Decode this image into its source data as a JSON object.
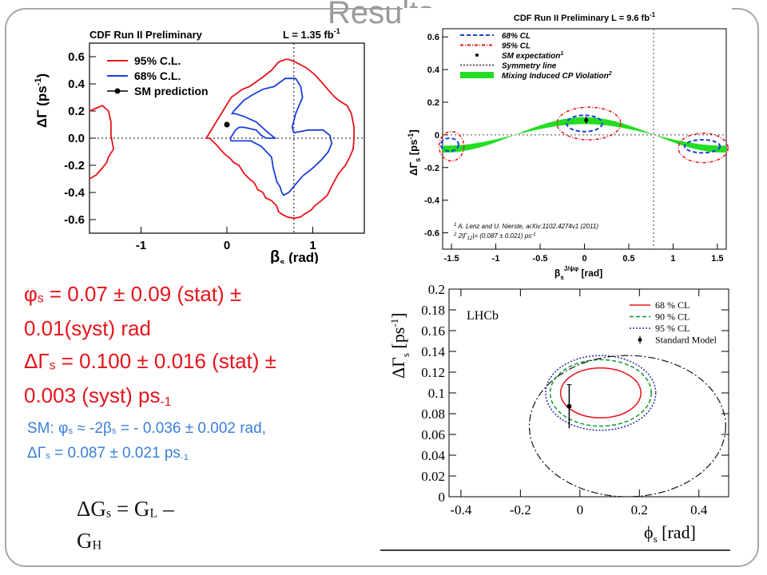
{
  "slide": {
    "title": "Results",
    "results": {
      "phi_s": {
        "sym": "φ",
        "sub": "s",
        "text": " = 0.07 ± 0.09 (stat) ±",
        "text2": "0.01(syst) rad"
      },
      "dgamma": {
        "sym": "ΔΓ",
        "sub": "s",
        "text": " = 0.100 ± 0.016 (stat) ±",
        "text2": "0.003 (syst) ps",
        "sup": "-1"
      },
      "sm": {
        "l1_a": "SM: φ",
        "l1_sub1": "s",
        "l1_b": " ≈ -2β",
        "l1_sub2": "s",
        "l1_c": " = - 0.036 ± 0.002 rad,",
        "l2_a": "ΔΓ",
        "l2_sub": "s",
        "l2_b": " = 0.087 ± 0.021 ps",
        "l2_sup": "-1"
      },
      "def": {
        "a": "ΔG",
        "s": "s",
        "b": " = G",
        "L": "L",
        "c": " –",
        "d": "G",
        "H": "H"
      }
    }
  },
  "chart_data": [
    {
      "type": "line",
      "title": "CDF Run II Preliminary",
      "lumi": "L = 1.35 fb",
      "lumi_sup": "-1",
      "xlabel": "β",
      "xlabel_sub": "s",
      "xlabel_unit": "(rad)",
      "ylabel": "ΔΓ (ps",
      "ylabel_sup": "-1",
      "ylabel_end": ")",
      "xlim": [
        -1.6,
        1.6
      ],
      "ylim": [
        -0.7,
        0.7
      ],
      "xticks": [
        -1,
        0,
        1
      ],
      "yticks": [
        -0.6,
        -0.4,
        -0.2,
        0.0,
        0.2,
        0.4,
        0.6
      ],
      "ytick_labels": [
        "-0.6",
        "-0.4",
        "-0.2",
        "0.0",
        "0.2",
        "0.4",
        "0.6"
      ],
      "legend": [
        {
          "name": "95% C.L.",
          "color": "#e8131a",
          "style": "line"
        },
        {
          "name": "68% C.L.",
          "color": "#1a3fd9",
          "style": "line"
        },
        {
          "name": "SM prediction",
          "color": "#000000",
          "style": "point"
        }
      ],
      "contours": [
        {
          "name": "95% C.L.",
          "color": "#e8131a",
          "x": [
            -0.24,
            0.05,
            0.18,
            0.26,
            0.33,
            0.42,
            0.52,
            0.6,
            0.68,
            0.72,
            0.8,
            0.92,
            1.02,
            1.12,
            1.2,
            1.26,
            1.32,
            1.4,
            1.45,
            1.48,
            1.48,
            1.47,
            1.43,
            1.38,
            1.3,
            1.24,
            1.2,
            1.17,
            1.1,
            1.02,
            0.98,
            0.9,
            0.86,
            0.78,
            0.7,
            0.64,
            0.6,
            0.58,
            0.52,
            0.45,
            0.42,
            0.36,
            0.32,
            0.26,
            0.2,
            0.14,
            0.08,
            0.04,
            -0.02,
            -0.08,
            -0.12,
            -0.17,
            -0.2,
            -0.24,
            -0.24
          ],
          "y": [
            0.0,
            0.3,
            0.36,
            0.38,
            0.41,
            0.45,
            0.5,
            0.56,
            0.58,
            0.58,
            0.56,
            0.52,
            0.47,
            0.4,
            0.34,
            0.3,
            0.27,
            0.24,
            0.18,
            0.08,
            0.0,
            -0.08,
            -0.14,
            -0.2,
            -0.26,
            -0.33,
            -0.38,
            -0.42,
            -0.46,
            -0.5,
            -0.53,
            -0.56,
            -0.58,
            -0.59,
            -0.58,
            -0.56,
            -0.54,
            -0.5,
            -0.46,
            -0.44,
            -0.4,
            -0.38,
            -0.33,
            -0.3,
            -0.26,
            -0.2,
            -0.18,
            -0.15,
            -0.12,
            -0.08,
            -0.05,
            -0.02,
            0.0,
            0.0,
            0.0
          ]
        },
        {
          "name": "95% C.L. (left)",
          "color": "#e8131a",
          "x": [
            -1.6,
            -1.45,
            -1.38,
            -1.35,
            -1.35,
            -1.32,
            -1.38,
            -1.4,
            -1.45,
            -1.52,
            -1.6
          ],
          "y": [
            0.2,
            0.24,
            0.2,
            0.12,
            0.02,
            -0.08,
            -0.14,
            -0.18,
            -0.22,
            -0.27,
            -0.3
          ]
        },
        {
          "name": "68% C.L.",
          "color": "#1a3fd9",
          "x": [
            0.08,
            0.2,
            0.3,
            0.42,
            0.55,
            0.68,
            0.8,
            0.86,
            0.88,
            0.8,
            0.76,
            0.78,
            0.95,
            1.12,
            1.2,
            1.22,
            1.18,
            1.1,
            1.0,
            0.88,
            0.8,
            0.72,
            0.66,
            0.64,
            0.62,
            0.58,
            0.54,
            0.52,
            0.4,
            0.28,
            0.16,
            0.08,
            0.05,
            0.04,
            0.06,
            0.1,
            0.14,
            0.2,
            0.34,
            0.4,
            0.46,
            0.56,
            0.48,
            0.34,
            0.2,
            0.1,
            0.06,
            0.08
          ],
          "y": [
            0.2,
            0.28,
            0.32,
            0.36,
            0.38,
            0.44,
            0.44,
            0.38,
            0.3,
            0.18,
            0.08,
            0.04,
            0.06,
            0.06,
            0.02,
            -0.04,
            -0.1,
            -0.16,
            -0.22,
            -0.28,
            -0.34,
            -0.4,
            -0.42,
            -0.4,
            -0.36,
            -0.32,
            -0.22,
            -0.14,
            -0.06,
            -0.02,
            -0.02,
            -0.02,
            -0.02,
            0.0,
            0.02,
            0.06,
            0.08,
            0.08,
            0.06,
            0.02,
            0.0,
            0.0,
            0.04,
            0.12,
            0.16,
            0.18,
            0.18,
            0.2
          ]
        }
      ],
      "sm_point": {
        "x": 0.0,
        "y": 0.1,
        "err": 0.02
      },
      "reference_lines": {
        "x": 0.78,
        "y": 0.0
      }
    },
    {
      "type": "line",
      "title": "CDF Run II Preliminary",
      "lumi": "L = 9.6 fb",
      "lumi_sup": "-1",
      "xlabel": "β",
      "xlabel_sub": "s",
      "xlabel_sup": "J/ψφ",
      "xlabel_unit": "[rad]",
      "ylabel": "ΔΓ",
      "ylabel_sub": "s",
      "ylabel_unit": "[ps",
      "ylabel_sup": "-1",
      "ylabel_end": "]",
      "xlim": [
        -1.6,
        1.6
      ],
      "ylim": [
        -0.7,
        0.65
      ],
      "xticks": [
        -1.5,
        -1,
        -0.5,
        0,
        0.5,
        1,
        1.5
      ],
      "xtick_labels": [
        "-1.5",
        "-1",
        "-0.5",
        "0",
        "0.5",
        "1",
        "1.5"
      ],
      "yticks": [
        -0.6,
        -0.4,
        -0.2,
        0,
        0.2,
        0.4,
        0.6
      ],
      "ytick_labels": [
        "-0.6",
        "-0.4",
        "-0.2",
        "0",
        "0.2",
        "0.4",
        "0.6"
      ],
      "legend": [
        {
          "name": "68% CL",
          "color": "#1a3fd9",
          "style": "dash"
        },
        {
          "name": "95% CL",
          "color": "#e8131a",
          "style": "dashdot"
        },
        {
          "name": "SM expectation",
          "name_sup": "1",
          "color": "#000000",
          "style": "point"
        },
        {
          "name": "Symmetry line",
          "color": "#555555",
          "style": "dot"
        },
        {
          "name": "Mixing Induced CP Violation",
          "name_sup": "2",
          "color": "#22dd22",
          "style": "band"
        }
      ],
      "footnotes": [
        {
          "sup": "1",
          "text": "A. Lenz and U. Nierste, arXiv:1102.4274v1 (2011)"
        },
        {
          "sup": "2",
          "text": "2|Γ",
          "sub": "12",
          "text2": "|= (0.087 ± 0.021) ps",
          "text2_sup": "-1"
        }
      ],
      "band": {
        "color": "#22dd22",
        "center_amplitude": 0.087,
        "halfwidth": 0.021
      },
      "contours": [
        {
          "name": "68% CL",
          "color": "#1a3fd9",
          "cx": 0.0,
          "cy": 0.07,
          "rx": 0.2,
          "ry": 0.05
        },
        {
          "name": "68% CL",
          "color": "#1a3fd9",
          "cx": 1.33,
          "cy": -0.07,
          "rx": 0.2,
          "ry": 0.04
        },
        {
          "name": "68% CL",
          "color": "#1a3fd9",
          "cx": -1.52,
          "cy": -0.06,
          "rx": 0.1,
          "ry": 0.04
        },
        {
          "name": "95% CL",
          "color": "#e8131a",
          "cx": 0.05,
          "cy": 0.07,
          "rx": 0.36,
          "ry": 0.1
        },
        {
          "name": "95% CL",
          "color": "#e8131a",
          "cx": 1.34,
          "cy": -0.08,
          "rx": 0.28,
          "ry": 0.09
        },
        {
          "name": "95% CL",
          "color": "#e8131a",
          "cx": -1.5,
          "cy": -0.07,
          "rx": 0.14,
          "ry": 0.09
        }
      ],
      "sm_point": {
        "x": 0.02,
        "y": 0.09,
        "err": 0.02
      },
      "reference_lines": {
        "x": 0.78,
        "y": 0.0
      }
    },
    {
      "type": "line",
      "title": "LHCb",
      "xlabel": "ϕ",
      "xlabel_sub": "s",
      "xlabel_unit": "[rad]",
      "ylabel": "ΔΓ",
      "ylabel_sub": "s",
      "ylabel_unit": "[ps",
      "ylabel_sup": "-1",
      "ylabel_end": "]",
      "xlim": [
        -0.44,
        0.5
      ],
      "ylim": [
        0.0,
        0.2
      ],
      "xticks": [
        -0.4,
        -0.2,
        0.0,
        0.2,
        0.4
      ],
      "xtick_labels": [
        "-0.4",
        "-0.2",
        "0",
        "0.2",
        "0.4"
      ],
      "yticks": [
        0,
        0.02,
        0.04,
        0.06,
        0.08,
        0.1,
        0.12,
        0.14,
        0.16,
        0.18,
        0.2
      ],
      "ytick_labels": [
        "0",
        "0.02",
        "0.04",
        "0.06",
        "0.08",
        "0.1",
        "0.12",
        "0.14",
        "0.16",
        "0.18",
        "0.2"
      ],
      "legend": [
        {
          "name": "68 % CL",
          "color": "#e8131a",
          "style": "line"
        },
        {
          "name": "90 % CL",
          "color": "#0a9a2a",
          "style": "dash"
        },
        {
          "name": "95 % CL",
          "color": "#2a2aa8",
          "style": "dot"
        },
        {
          "name": "Standard Model",
          "color": "#000000",
          "style": "point"
        }
      ],
      "contours": [
        {
          "name": "68 % CL",
          "color": "#e8131a",
          "cx": 0.07,
          "cy": 0.1,
          "rx": 0.135,
          "ry": 0.024
        },
        {
          "name": "90 % CL",
          "color": "#0a9a2a",
          "cx": 0.07,
          "cy": 0.1,
          "rx": 0.17,
          "ry": 0.032
        },
        {
          "name": "95 % CL",
          "color": "#2a2aa8",
          "cx": 0.07,
          "cy": 0.1,
          "rx": 0.185,
          "ry": 0.036
        },
        {
          "name": "outer ellipse",
          "color": "#111111",
          "cx": 0.16,
          "cy": 0.068,
          "rx": 0.33,
          "ry": 0.068
        }
      ],
      "sm_point": {
        "x": -0.036,
        "y": 0.087,
        "err": 0.021
      }
    }
  ]
}
